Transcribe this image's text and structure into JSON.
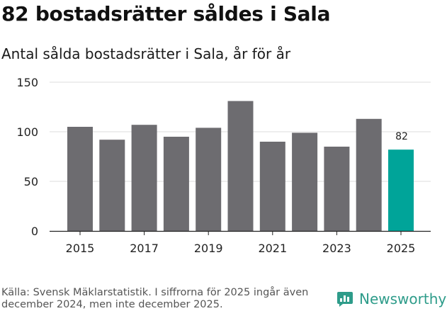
{
  "header": {
    "title": "82 bostadsrätter såldes i Sala",
    "subtitle": "Antal sålda bostadsrätter i Sala, år för år"
  },
  "footer": {
    "source": "Källa: Svensk Mäklarstatistik. I siffrorna för 2025 ingår även december 2024, men inte december 2025.",
    "logo_text": "Newsworthy"
  },
  "colors": {
    "bar": "#6d6c70",
    "highlight": "#00a499",
    "grid": "#dcdcdc",
    "logo": "#2e9c8a"
  },
  "chart_data": {
    "type": "bar",
    "categories": [
      "2015",
      "2016",
      "2017",
      "2018",
      "2019",
      "2020",
      "2021",
      "2022",
      "2023",
      "2024",
      "2025"
    ],
    "values": [
      105,
      92,
      107,
      95,
      104,
      131,
      90,
      99,
      85,
      113,
      82
    ],
    "x_tick_labels": [
      "2015",
      "2017",
      "2019",
      "2021",
      "2023",
      "2025"
    ],
    "y_ticks": [
      0,
      50,
      100,
      150
    ],
    "ylim": [
      0,
      150
    ],
    "highlight_index": 10,
    "highlight_label": "82",
    "title": "82 bostadsrätter såldes i Sala",
    "xlabel": "",
    "ylabel": ""
  }
}
